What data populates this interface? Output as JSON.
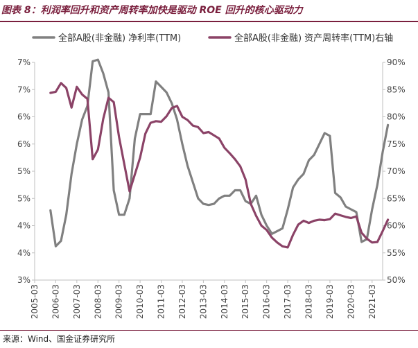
{
  "header": {
    "title": "图表 8：利润率回升和资产周转率加快是驱动 ROE 回升的核心驱动力"
  },
  "footer": {
    "source": "来源：Wind、国金证券研究所"
  },
  "colors": {
    "series1": "#808080",
    "series2": "#8b4367",
    "title": "#7a1f3d"
  },
  "chart_data": {
    "type": "line",
    "grid": false,
    "legend_position": "top",
    "x_ticks": [
      "2005-03",
      "2006-03",
      "2007-03",
      "2008-03",
      "2009-03",
      "2010-03",
      "2011-03",
      "2012-03",
      "2013-03",
      "2014-03",
      "2015-03",
      "2016-03",
      "2017-03",
      "2018-03",
      "2019-03",
      "2020-03",
      "2021-03"
    ],
    "x_range": [
      2005.0,
      2021.5
    ],
    "y_left": {
      "ticks": [
        "3%",
        "4%",
        "4%",
        "5%",
        "5%",
        "6%",
        "6%",
        "7%",
        "7%"
      ],
      "range": [
        3.0,
        7.0
      ]
    },
    "y_right": {
      "ticks": [
        "50%",
        "55%",
        "60%",
        "65%",
        "70%",
        "75%",
        "80%",
        "85%",
        "90%"
      ],
      "range": [
        50,
        90
      ]
    },
    "series": [
      {
        "name": "全部A股(非金融) 净利率(TTM)",
        "axis": "left",
        "points": [
          [
            2005.75,
            4.28
          ],
          [
            2006.0,
            3.62
          ],
          [
            2006.25,
            3.72
          ],
          [
            2006.5,
            4.2
          ],
          [
            2006.75,
            4.95
          ],
          [
            2007.0,
            5.5
          ],
          [
            2007.25,
            5.95
          ],
          [
            2007.5,
            6.2
          ],
          [
            2007.75,
            7.02
          ],
          [
            2008.0,
            7.05
          ],
          [
            2008.25,
            6.8
          ],
          [
            2008.5,
            6.45
          ],
          [
            2008.75,
            4.65
          ],
          [
            2009.0,
            4.2
          ],
          [
            2009.25,
            4.2
          ],
          [
            2009.5,
            4.5
          ],
          [
            2009.75,
            5.6
          ],
          [
            2010.0,
            6.05
          ],
          [
            2010.25,
            6.05
          ],
          [
            2010.5,
            6.05
          ],
          [
            2010.75,
            6.65
          ],
          [
            2011.0,
            6.55
          ],
          [
            2011.25,
            6.45
          ],
          [
            2011.5,
            6.25
          ],
          [
            2011.75,
            5.95
          ],
          [
            2012.0,
            5.5
          ],
          [
            2012.25,
            5.1
          ],
          [
            2012.5,
            4.8
          ],
          [
            2012.75,
            4.5
          ],
          [
            2013.0,
            4.4
          ],
          [
            2013.25,
            4.38
          ],
          [
            2013.5,
            4.4
          ],
          [
            2013.75,
            4.5
          ],
          [
            2014.0,
            4.55
          ],
          [
            2014.25,
            4.55
          ],
          [
            2014.5,
            4.65
          ],
          [
            2014.75,
            4.65
          ],
          [
            2015.0,
            4.45
          ],
          [
            2015.25,
            4.4
          ],
          [
            2015.5,
            4.55
          ],
          [
            2015.75,
            4.2
          ],
          [
            2016.0,
            4.0
          ],
          [
            2016.25,
            3.85
          ],
          [
            2016.5,
            3.9
          ],
          [
            2016.75,
            3.95
          ],
          [
            2017.0,
            4.3
          ],
          [
            2017.25,
            4.7
          ],
          [
            2017.5,
            4.85
          ],
          [
            2017.75,
            4.95
          ],
          [
            2018.0,
            5.2
          ],
          [
            2018.25,
            5.3
          ],
          [
            2018.5,
            5.5
          ],
          [
            2018.75,
            5.7
          ],
          [
            2019.0,
            5.65
          ],
          [
            2019.25,
            4.6
          ],
          [
            2019.5,
            4.52
          ],
          [
            2019.75,
            4.35
          ],
          [
            2020.0,
            4.3
          ],
          [
            2020.25,
            4.25
          ],
          [
            2020.5,
            3.7
          ],
          [
            2020.75,
            3.75
          ],
          [
            2021.0,
            4.3
          ],
          [
            2021.25,
            4.75
          ],
          [
            2021.5,
            5.35
          ],
          [
            2021.75,
            5.85
          ]
        ]
      },
      {
        "name": "全部A股(非金融) 资产周转率(TTM)右轴",
        "axis": "right",
        "points": [
          [
            2005.75,
            84.4
          ],
          [
            2006.0,
            84.6
          ],
          [
            2006.25,
            86.2
          ],
          [
            2006.5,
            85.3
          ],
          [
            2006.75,
            81.7
          ],
          [
            2007.0,
            85.5
          ],
          [
            2007.25,
            84.1
          ],
          [
            2007.5,
            83.3
          ],
          [
            2007.75,
            72.2
          ],
          [
            2008.0,
            74.0
          ],
          [
            2008.25,
            79.6
          ],
          [
            2008.5,
            83.5
          ],
          [
            2008.75,
            82.7
          ],
          [
            2009.0,
            76.3
          ],
          [
            2009.25,
            71.3
          ],
          [
            2009.5,
            66.3
          ],
          [
            2009.75,
            69.4
          ],
          [
            2010.0,
            72.5
          ],
          [
            2010.25,
            76.9
          ],
          [
            2010.5,
            78.9
          ],
          [
            2010.75,
            79.2
          ],
          [
            2011.0,
            79.1
          ],
          [
            2011.25,
            80.1
          ],
          [
            2011.5,
            81.6
          ],
          [
            2011.75,
            82.0
          ],
          [
            2012.0,
            80.0
          ],
          [
            2012.25,
            79.4
          ],
          [
            2012.5,
            78.4
          ],
          [
            2012.75,
            78.1
          ],
          [
            2013.0,
            77.0
          ],
          [
            2013.25,
            77.2
          ],
          [
            2013.5,
            76.6
          ],
          [
            2013.75,
            76.0
          ],
          [
            2014.0,
            74.3
          ],
          [
            2014.25,
            73.3
          ],
          [
            2014.5,
            72.2
          ],
          [
            2014.75,
            70.9
          ],
          [
            2015.0,
            68.5
          ],
          [
            2015.25,
            64.0
          ],
          [
            2015.5,
            61.8
          ],
          [
            2015.75,
            60.0
          ],
          [
            2016.0,
            59.2
          ],
          [
            2016.25,
            57.8
          ],
          [
            2016.5,
            56.9
          ],
          [
            2016.75,
            56.2
          ],
          [
            2017.0,
            56.0
          ],
          [
            2017.25,
            58.3
          ],
          [
            2017.5,
            60.2
          ],
          [
            2017.75,
            60.9
          ],
          [
            2018.0,
            60.5
          ],
          [
            2018.25,
            60.9
          ],
          [
            2018.5,
            61.1
          ],
          [
            2018.75,
            61.0
          ],
          [
            2019.0,
            61.2
          ],
          [
            2019.25,
            62.2
          ],
          [
            2019.5,
            61.9
          ],
          [
            2019.75,
            61.6
          ],
          [
            2020.0,
            61.4
          ],
          [
            2020.25,
            61.7
          ],
          [
            2020.5,
            58.7
          ],
          [
            2020.75,
            57.6
          ],
          [
            2021.0,
            56.9
          ],
          [
            2021.25,
            57.0
          ],
          [
            2021.5,
            59.0
          ],
          [
            2021.75,
            61.1
          ]
        ]
      }
    ]
  }
}
